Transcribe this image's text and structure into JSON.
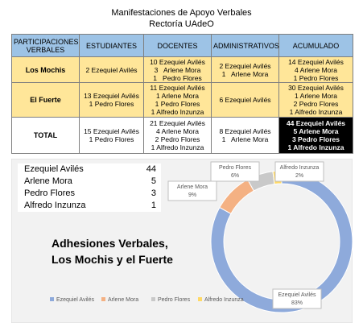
{
  "header": {
    "title": "Manifestaciones de Apoyo Verbales",
    "subtitle": "Rectoría UAdeO"
  },
  "table": {
    "columns": [
      "PARTICIPACIONES VERBALES",
      "ESTUDIANTES",
      "DOCENTES",
      "ADMINISTRATIVOS",
      "ACUMULADO"
    ],
    "rows": [
      {
        "label": "Los Mochis",
        "cells": [
          [
            "2 Ezequiel Avilés"
          ],
          [
            "10 Ezequiel Avilés",
            "3   Arlene Mora",
            "1   Pedro Flores"
          ],
          [
            "2 Ezequiel Avilés",
            "1   Arlene Mora"
          ],
          [
            "14 Ezequiel Avilés",
            "4 Arlene Mora",
            "1 Pedro Flores"
          ]
        ]
      },
      {
        "label": "El Fuerte",
        "cells": [
          [
            "13 Ezequiel Avilés",
            "1 Pedro Flores"
          ],
          [
            "11 Ezequiel Avilés",
            "1 Arlene Mora",
            "1 Pedro Flores",
            "1 Alfredo Inzunza"
          ],
          [
            "6 Ezequiel Avilés"
          ],
          [
            "30 Ezequiel Avilés",
            "1 Arlene Mora",
            "2 Pedro Flores",
            "1 Alfredo Inzunza"
          ]
        ]
      },
      {
        "label": "TOTAL",
        "cells": [
          [
            "15 Ezequiel Avilés",
            "1 Pedro Flores"
          ],
          [
            "21 Ezequiel Avilés",
            "4 Arlene Mora",
            "2 Pedro Flores",
            "1 Alfredo Inzunza"
          ],
          [
            "8 Ezequiel Avilés",
            "1   Arlene Mora"
          ],
          [
            "44 Ezequiel Avilés",
            "5 Arlene Mora",
            "3 Pedro Flores",
            "1 Alfredo Inzunza"
          ]
        ]
      }
    ]
  },
  "summary": {
    "rows": [
      {
        "name": "Ezequiel Avilés",
        "count": 44
      },
      {
        "name": "Arlene Mora",
        "count": 5
      },
      {
        "name": "Pedro Flores",
        "count": 3
      },
      {
        "name": "Alfredo Inzunza",
        "count": 1
      }
    ]
  },
  "chart_data": {
    "type": "pie",
    "donut": true,
    "title": [
      "Adhesiones Verbales,",
      "Los Mochis y el Fuerte"
    ],
    "categories": [
      "Ezequiel Avilés",
      "Arlene Mora",
      "Pedro Flores",
      "Alfredo Inzunza"
    ],
    "values": [
      83,
      9,
      6,
      2
    ],
    "value_labels": [
      "83%",
      "9%",
      "6%",
      "2%"
    ],
    "colors": [
      "#8eaadb",
      "#f4b183",
      "#c9c9c9",
      "#ffd966"
    ],
    "legend": "bottom"
  }
}
